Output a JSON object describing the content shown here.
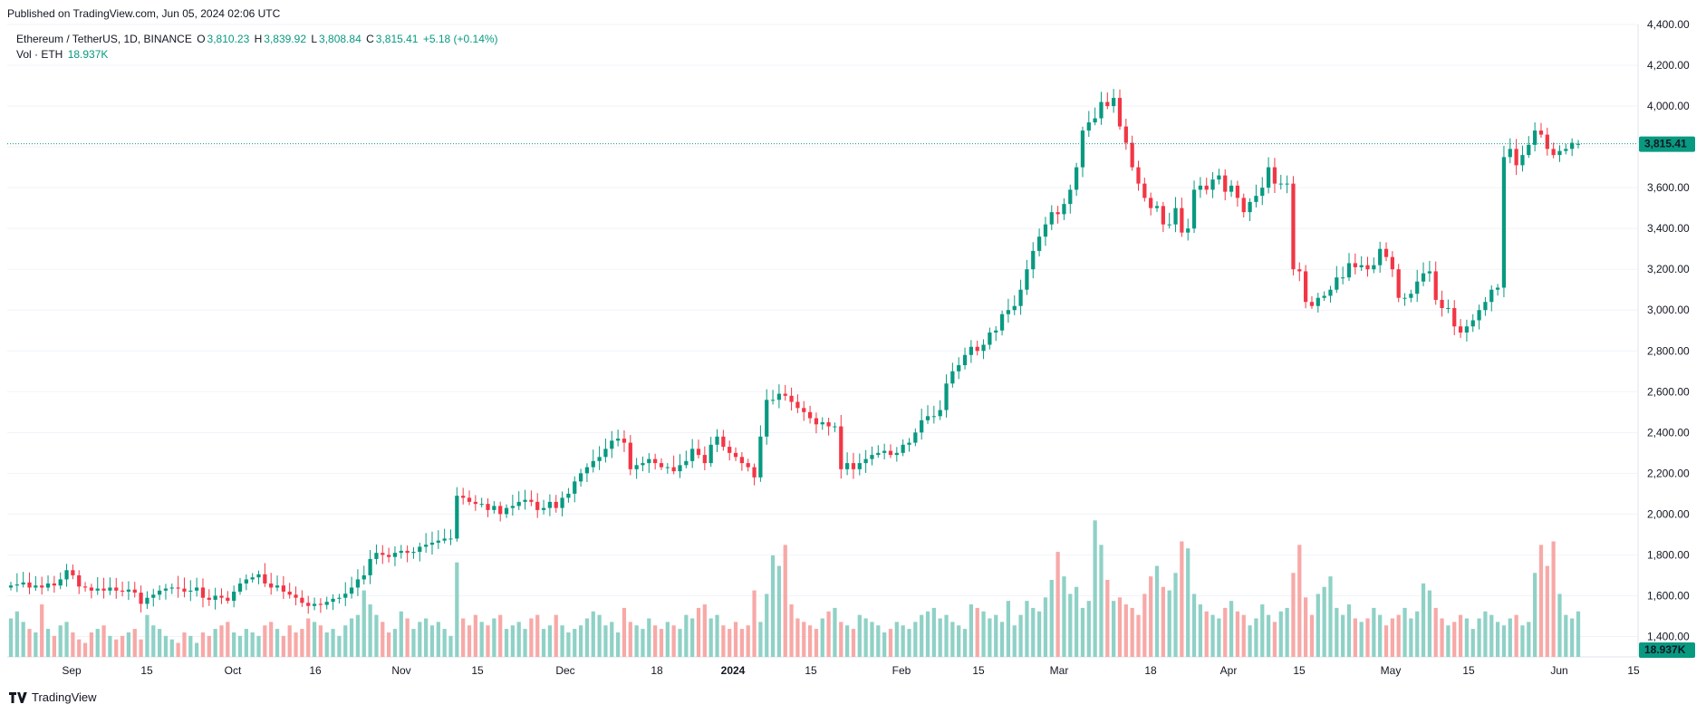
{
  "published": "Published on TradingView.com, Jun 05, 2024 02:06 UTC",
  "legend": {
    "symbol": "Ethereum / TetherUS, 1D, BINANCE",
    "o_label": "O",
    "o": "3,810.23",
    "h_label": "H",
    "h": "3,839.92",
    "l_label": "L",
    "l": "3,808.84",
    "c_label": "C",
    "c": "3,815.41",
    "change": "+5.18 (+0.14%)",
    "vol_label": "Vol · ETH",
    "vol": "18.937K"
  },
  "footer": {
    "brand": "TradingView"
  },
  "colors": {
    "up": "#089981",
    "down": "#f23645",
    "up_vol": "#8fd1c6",
    "down_vol": "#f7a9a7",
    "grid": "#f0f3fa"
  },
  "chart_data": {
    "type": "candlestick",
    "title": "Ethereum / TetherUS, 1D, BINANCE",
    "ylim": [
      1300,
      4400
    ],
    "price_ticks": [
      "4,400.00",
      "4,200.00",
      "4,000.00",
      "3,800.00",
      "3,600.00",
      "3,400.00",
      "3,200.00",
      "3,000.00",
      "2,800.00",
      "2,600.00",
      "2,400.00",
      "2,200.00",
      "2,000.00",
      "1,800.00",
      "1,600.00",
      "1,400.00"
    ],
    "price_tick_values": [
      4400,
      4200,
      4000,
      3800,
      3600,
      3400,
      3200,
      3000,
      2800,
      2600,
      2400,
      2200,
      2000,
      1800,
      1600,
      1400
    ],
    "time_ticks": [
      "Sep",
      "15",
      "Oct",
      "16",
      "Nov",
      "15",
      "Dec",
      "18",
      "2024",
      "15",
      "Feb",
      "15",
      "Mar",
      "18",
      "Apr",
      "15",
      "May",
      "15",
      "Jun",
      "15"
    ],
    "time_tick_bold": [
      false,
      false,
      false,
      false,
      false,
      false,
      false,
      false,
      true,
      false,
      false,
      false,
      false,
      false,
      false,
      false,
      false,
      false,
      false,
      false
    ],
    "last_price_label": "3,815.41",
    "last_price": 3815.41,
    "last_volume_label": "18.937K",
    "closes": [
      1650,
      1655,
      1665,
      1640,
      1650,
      1640,
      1660,
      1650,
      1680,
      1725,
      1700,
      1645,
      1640,
      1625,
      1635,
      1625,
      1640,
      1625,
      1620,
      1630,
      1615,
      1560,
      1590,
      1605,
      1625,
      1635,
      1640,
      1635,
      1620,
      1625,
      1640,
      1590,
      1580,
      1600,
      1590,
      1575,
      1620,
      1660,
      1680,
      1690,
      1705,
      1660,
      1640,
      1650,
      1620,
      1605,
      1590,
      1565,
      1550,
      1560,
      1555,
      1570,
      1585,
      1590,
      1610,
      1640,
      1680,
      1700,
      1780,
      1810,
      1800,
      1790,
      1810,
      1820,
      1810,
      1815,
      1840,
      1850,
      1860,
      1870,
      1880,
      1880,
      2090,
      2080,
      2060,
      2050,
      2050,
      2020,
      2040,
      2000,
      2030,
      2040,
      2060,
      2070,
      2060,
      2020,
      2030,
      2060,
      2030,
      2080,
      2100,
      2160,
      2200,
      2230,
      2260,
      2280,
      2320,
      2360,
      2370,
      2350,
      2220,
      2240,
      2250,
      2270,
      2250,
      2230,
      2230,
      2210,
      2240,
      2260,
      2320,
      2290,
      2250,
      2340,
      2380,
      2330,
      2300,
      2280,
      2250,
      2230,
      2180,
      2380,
      2560,
      2560,
      2590,
      2580,
      2550,
      2520,
      2500,
      2470,
      2440,
      2450,
      2430,
      2430,
      2220,
      2250,
      2220,
      2250,
      2270,
      2290,
      2300,
      2310,
      2290,
      2300,
      2340,
      2350,
      2400,
      2460,
      2480,
      2480,
      2510,
      2640,
      2700,
      2730,
      2780,
      2820,
      2800,
      2830,
      2890,
      2900,
      2980,
      3000,
      3020,
      3100,
      3200,
      3290,
      3360,
      3420,
      3480,
      3470,
      3520,
      3590,
      3700,
      3880,
      3920,
      3940,
      4020,
      4000,
      4040,
      3900,
      3820,
      3700,
      3620,
      3550,
      3500,
      3510,
      3420,
      3420,
      3500,
      3380,
      3400,
      3590,
      3610,
      3590,
      3640,
      3660,
      3580,
      3610,
      3550,
      3480,
      3530,
      3560,
      3600,
      3700,
      3620,
      3620,
      3620,
      3200,
      3190,
      3040,
      3020,
      3060,
      3070,
      3100,
      3160,
      3160,
      3230,
      3210,
      3220,
      3200,
      3220,
      3300,
      3260,
      3200,
      3060,
      3060,
      3080,
      3140,
      3180,
      3190,
      3050,
      3010,
      3010,
      2920,
      2890,
      2920,
      2950,
      3000,
      3040,
      3100,
      3110,
      3750,
      3790,
      3710,
      3760,
      3810,
      3880,
      3860,
      3790,
      3760,
      3780,
      3790,
      3820,
      3815
    ],
    "opens": [
      1640,
      1650,
      1655,
      1665,
      1640,
      1650,
      1640,
      1660,
      1650,
      1680,
      1725,
      1700,
      1645,
      1640,
      1625,
      1635,
      1625,
      1640,
      1625,
      1620,
      1630,
      1615,
      1560,
      1590,
      1605,
      1625,
      1635,
      1640,
      1635,
      1620,
      1625,
      1640,
      1590,
      1580,
      1600,
      1590,
      1575,
      1620,
      1660,
      1680,
      1690,
      1705,
      1660,
      1640,
      1650,
      1620,
      1605,
      1590,
      1565,
      1550,
      1560,
      1555,
      1570,
      1585,
      1590,
      1610,
      1640,
      1680,
      1700,
      1780,
      1810,
      1800,
      1790,
      1810,
      1820,
      1810,
      1815,
      1840,
      1850,
      1860,
      1870,
      1880,
      1880,
      2090,
      2080,
      2060,
      2050,
      2050,
      2020,
      2040,
      2000,
      2030,
      2040,
      2060,
      2070,
      2060,
      2020,
      2030,
      2060,
      2030,
      2080,
      2100,
      2160,
      2200,
      2230,
      2260,
      2280,
      2320,
      2360,
      2370,
      2350,
      2220,
      2240,
      2250,
      2270,
      2250,
      2230,
      2230,
      2210,
      2240,
      2260,
      2320,
      2290,
      2250,
      2340,
      2380,
      2330,
      2300,
      2280,
      2250,
      2230,
      2180,
      2380,
      2560,
      2560,
      2590,
      2580,
      2550,
      2520,
      2500,
      2470,
      2440,
      2450,
      2430,
      2430,
      2220,
      2250,
      2220,
      2250,
      2270,
      2290,
      2300,
      2310,
      2290,
      2300,
      2340,
      2350,
      2400,
      2460,
      2480,
      2480,
      2510,
      2640,
      2700,
      2730,
      2780,
      2820,
      2800,
      2830,
      2890,
      2900,
      2980,
      3000,
      3020,
      3100,
      3200,
      3290,
      3360,
      3420,
      3480,
      3470,
      3520,
      3590,
      3700,
      3880,
      3920,
      3940,
      4020,
      4000,
      4040,
      3900,
      3820,
      3700,
      3620,
      3550,
      3500,
      3510,
      3420,
      3420,
      3500,
      3380,
      3400,
      3590,
      3610,
      3590,
      3640,
      3660,
      3580,
      3610,
      3550,
      3480,
      3530,
      3560,
      3600,
      3700,
      3620,
      3620,
      3620,
      3200,
      3190,
      3040,
      3020,
      3060,
      3070,
      3100,
      3160,
      3160,
      3230,
      3210,
      3220,
      3200,
      3220,
      3300,
      3260,
      3200,
      3060,
      3060,
      3080,
      3140,
      3180,
      3190,
      3050,
      3010,
      3010,
      2920,
      2890,
      2920,
      2950,
      3000,
      3040,
      3100,
      3110,
      3750,
      3790,
      3710,
      3760,
      3810,
      3880,
      3860,
      3790,
      3760,
      3780,
      3790,
      3810
    ],
    "volumes": [
      55,
      65,
      50,
      40,
      35,
      75,
      40,
      30,
      45,
      50,
      35,
      25,
      20,
      35,
      40,
      45,
      30,
      25,
      30,
      35,
      40,
      25,
      60,
      45,
      40,
      30,
      25,
      20,
      35,
      30,
      20,
      35,
      30,
      40,
      45,
      50,
      35,
      30,
      40,
      35,
      30,
      45,
      50,
      40,
      30,
      45,
      35,
      40,
      55,
      50,
      45,
      35,
      40,
      30,
      45,
      55,
      60,
      95,
      75,
      60,
      50,
      35,
      40,
      65,
      55,
      40,
      50,
      55,
      45,
      50,
      40,
      30,
      135,
      55,
      45,
      60,
      50,
      45,
      55,
      60,
      40,
      45,
      50,
      40,
      55,
      60,
      40,
      45,
      60,
      45,
      35,
      40,
      45,
      55,
      65,
      60,
      45,
      50,
      35,
      70,
      50,
      45,
      40,
      55,
      45,
      40,
      50,
      45,
      40,
      60,
      55,
      70,
      75,
      55,
      60,
      45,
      40,
      50,
      40,
      45,
      95,
      50,
      90,
      145,
      130,
      160,
      75,
      55,
      50,
      45,
      40,
      55,
      65,
      70,
      50,
      45,
      40,
      60,
      55,
      50,
      45,
      35,
      40,
      50,
      45,
      40,
      50,
      60,
      65,
      70,
      55,
      60,
      50,
      45,
      40,
      75,
      70,
      65,
      55,
      60,
      50,
      80,
      45,
      60,
      80,
      70,
      65,
      85,
      110,
      150,
      115,
      90,
      100,
      70,
      80,
      195,
      160,
      110,
      80,
      85,
      75,
      70,
      60,
      90,
      115,
      130,
      100,
      95,
      120,
      165,
      155,
      90,
      75,
      65,
      60,
      55,
      70,
      80,
      65,
      60,
      45,
      55,
      75,
      60,
      50,
      65,
      70,
      120,
      160,
      85,
      60,
      90,
      100,
      115,
      70,
      60,
      75,
      55,
      50,
      55,
      70,
      60,
      45,
      55,
      60,
      70,
      55,
      65,
      105,
      95,
      70,
      55,
      45,
      50,
      60,
      55,
      40,
      55,
      65,
      60,
      50,
      45,
      55,
      60,
      45,
      50,
      120,
      160,
      130,
      165,
      90,
      60,
      55,
      65,
      70,
      50,
      75,
      60,
      55,
      45,
      50,
      40,
      25,
      30,
      12
    ],
    "volume_ylim": [
      0,
      220
    ]
  }
}
